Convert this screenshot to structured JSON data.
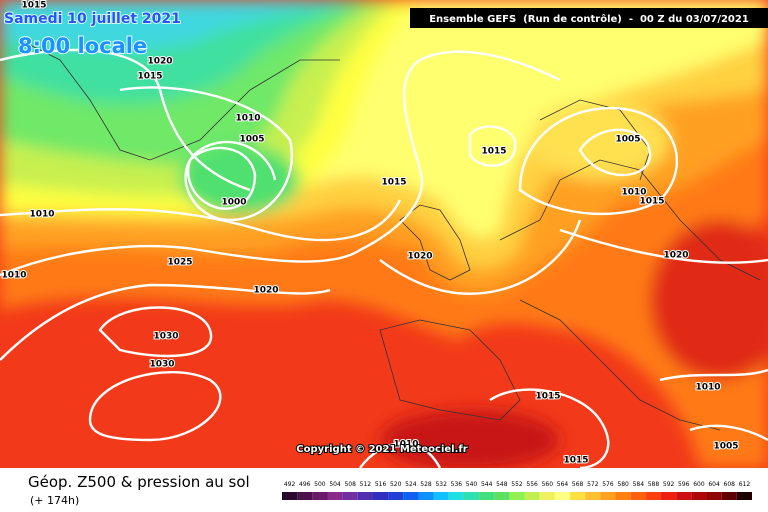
{
  "header": {
    "date": "Samedi 10 juillet 2021",
    "time": "8:00 locale",
    "run": "Ensemble GEFS  (Run de contrôle)  -  00 Z du 03/07/2021"
  },
  "isobar_labels": [
    1015,
    1020,
    1015,
    1010,
    1005,
    1000,
    1010,
    1025,
    1020,
    1010,
    1030,
    1030,
    1015,
    1020,
    1015,
    1005,
    1010,
    1015,
    1020,
    1015,
    1010,
    1005,
    1010,
    1015
  ],
  "copyright": "Copyright © 2021 Meteociel.fr",
  "footer": {
    "title": "Géop. Z500 & pression au sol",
    "lead": "(+ 174h)"
  },
  "scale": {
    "values": [
      492,
      496,
      500,
      504,
      508,
      512,
      516,
      520,
      524,
      528,
      532,
      536,
      540,
      544,
      548,
      552,
      556,
      560,
      564,
      568,
      572,
      576,
      580,
      584,
      588,
      592,
      596,
      600,
      604,
      608,
      612
    ],
    "colors": [
      "#2a0a2a",
      "#4a104a",
      "#6a1a6a",
      "#8a2a8a",
      "#7030a0",
      "#5030b0",
      "#3030c0",
      "#2040d8",
      "#1060f0",
      "#1090ff",
      "#10c0ff",
      "#20e0e0",
      "#30e0b0",
      "#40e080",
      "#60e060",
      "#90f050",
      "#c0f050",
      "#f0f060",
      "#ffff80",
      "#ffe040",
      "#ffc030",
      "#ffa020",
      "#ff8010",
      "#ff6010",
      "#ff4010",
      "#f02010",
      "#d01010",
      "#b00808",
      "#900404",
      "#600000",
      "#200000"
    ]
  }
}
